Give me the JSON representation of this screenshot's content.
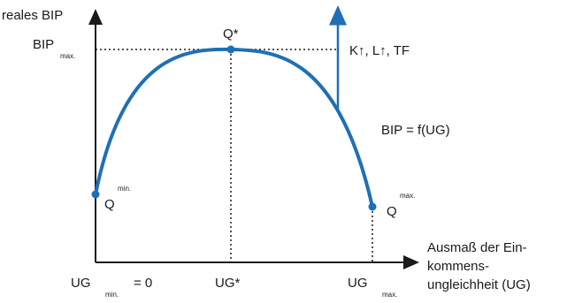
{
  "colors": {
    "curve": "#1f6fb5",
    "axis": "#1a1a1a",
    "arrow": "#1f6fb5",
    "dotted": "#1a1a1a"
  },
  "labels": {
    "y_axis": "reales BIP",
    "x_axis_line1": "Ausmaß der Ein-",
    "x_axis_line2": "kommens-",
    "x_axis_line3": "ungleichheit (UG)",
    "bip_max_main": "BIP",
    "bip_max_sub": "max.",
    "q_star": "Q*",
    "q_min_main": "Q",
    "q_min_sup": "min.",
    "q_max_main": "Q",
    "q_max_sup": "max.",
    "function": "BIP = f(UG)",
    "shift_note": "K↑,  L↑, TF",
    "ug_min_main": "UG",
    "ug_min_sub": "min.",
    "ug_min_eq": "= 0",
    "ug_star": "UG*",
    "ug_max_main": "UG",
    "ug_max_sub": "max."
  }
}
